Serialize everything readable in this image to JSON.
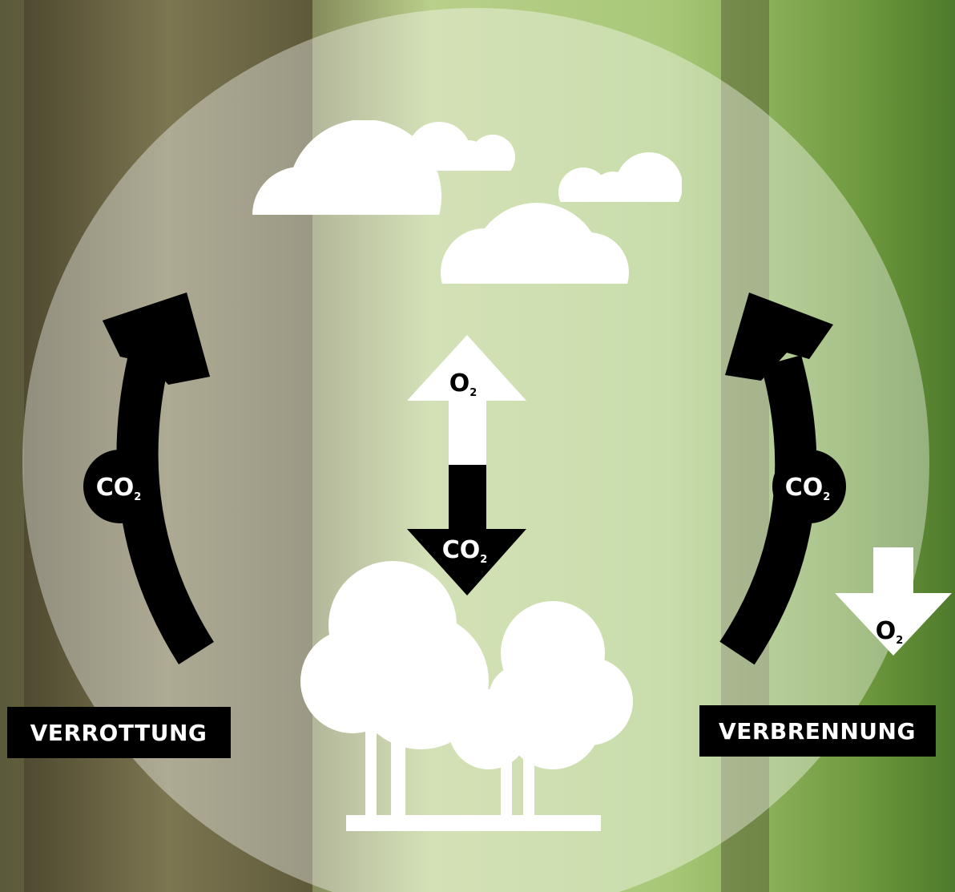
{
  "labels": {
    "decay": "VERROTTUNG",
    "combustion": "VERBRENNUNG"
  },
  "molecules": {
    "decay_flow": {
      "main": "CO",
      "sub": "2"
    },
    "combustion_flow": {
      "main": "CO",
      "sub": "2"
    },
    "tree_release": {
      "main": "O",
      "sub": "2"
    },
    "tree_uptake": {
      "main": "CO",
      "sub": "2"
    },
    "combustion_uptake": {
      "main": "O",
      "sub": "2"
    }
  }
}
